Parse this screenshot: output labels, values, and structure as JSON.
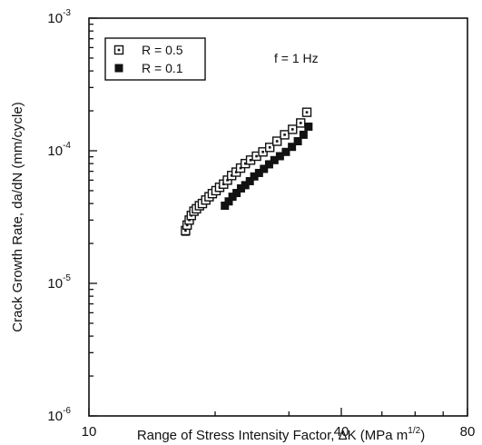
{
  "chart_data": {
    "type": "scatter",
    "xlabel_main": "Range of Stress Intensity Factor, ΔK (MPa m",
    "xlabel_sup": "1/2",
    "xlabel_end": ")",
    "ylabel": "Crack Growth Rate, da/dN (mm/cycle)",
    "x_scale": "log",
    "y_scale": "log",
    "xlim": [
      10,
      80
    ],
    "ylim": [
      1e-06,
      0.001
    ],
    "x_ticks": [
      {
        "value": 10,
        "label": "10"
      },
      {
        "value": 40,
        "label": "40"
      },
      {
        "value": 80,
        "label": "80"
      }
    ],
    "y_ticks": [
      {
        "value": 1e-06,
        "base": "10",
        "exp": "-6"
      },
      {
        "value": 1e-05,
        "base": "10",
        "exp": "-5"
      },
      {
        "value": 0.0001,
        "base": "10",
        "exp": "-4"
      },
      {
        "value": 0.001,
        "base": "10",
        "exp": "-3"
      }
    ],
    "annotation": "f = 1 Hz",
    "legend_position": "top-left",
    "grid": false,
    "series": [
      {
        "name": "R = 0.5",
        "marker": "open-square-dot",
        "points": [
          {
            "x": 17.0,
            "y": 2.5e-05
          },
          {
            "x": 17.15,
            "y": 2.75e-05
          },
          {
            "x": 17.35,
            "y": 3e-05
          },
          {
            "x": 17.55,
            "y": 3.25e-05
          },
          {
            "x": 17.8,
            "y": 3.5e-05
          },
          {
            "x": 18.05,
            "y": 3.65e-05
          },
          {
            "x": 18.35,
            "y": 3.85e-05
          },
          {
            "x": 18.65,
            "y": 4e-05
          },
          {
            "x": 19.0,
            "y": 4.25e-05
          },
          {
            "x": 19.35,
            "y": 4.5e-05
          },
          {
            "x": 19.7,
            "y": 4.75e-05
          },
          {
            "x": 20.1,
            "y": 5e-05
          },
          {
            "x": 20.5,
            "y": 5.3e-05
          },
          {
            "x": 20.95,
            "y": 5.6e-05
          },
          {
            "x": 21.4,
            "y": 6e-05
          },
          {
            "x": 21.9,
            "y": 6.5e-05
          },
          {
            "x": 22.45,
            "y": 6.9e-05
          },
          {
            "x": 23.0,
            "y": 7.4e-05
          },
          {
            "x": 23.6,
            "y": 8e-05
          },
          {
            "x": 24.3,
            "y": 8.5e-05
          },
          {
            "x": 25.1,
            "y": 9.1e-05
          },
          {
            "x": 26.0,
            "y": 9.8e-05
          },
          {
            "x": 27.0,
            "y": 0.000106
          },
          {
            "x": 28.1,
            "y": 0.000118
          },
          {
            "x": 29.3,
            "y": 0.000132
          },
          {
            "x": 30.6,
            "y": 0.000145
          },
          {
            "x": 32.0,
            "y": 0.000162
          },
          {
            "x": 33.1,
            "y": 0.000195
          }
        ]
      },
      {
        "name": "R = 0.1",
        "marker": "filled-square",
        "points": [
          {
            "x": 17.0,
            "y": 2.45e-05
          },
          {
            "x": 21.1,
            "y": 3.85e-05
          },
          {
            "x": 21.55,
            "y": 4.15e-05
          },
          {
            "x": 22.0,
            "y": 4.5e-05
          },
          {
            "x": 22.5,
            "y": 4.8e-05
          },
          {
            "x": 23.05,
            "y": 5.2e-05
          },
          {
            "x": 23.6,
            "y": 5.5e-05
          },
          {
            "x": 24.2,
            "y": 5.9e-05
          },
          {
            "x": 24.8,
            "y": 6.4e-05
          },
          {
            "x": 25.45,
            "y": 6.8e-05
          },
          {
            "x": 26.15,
            "y": 7.3e-05
          },
          {
            "x": 26.9,
            "y": 7.9e-05
          },
          {
            "x": 27.7,
            "y": 8.5e-05
          },
          {
            "x": 28.55,
            "y": 9.1e-05
          },
          {
            "x": 29.5,
            "y": 9.8e-05
          },
          {
            "x": 30.5,
            "y": 0.000107
          },
          {
            "x": 31.5,
            "y": 0.000118
          },
          {
            "x": 32.5,
            "y": 0.000132
          },
          {
            "x": 33.4,
            "y": 0.000152
          }
        ]
      }
    ]
  }
}
